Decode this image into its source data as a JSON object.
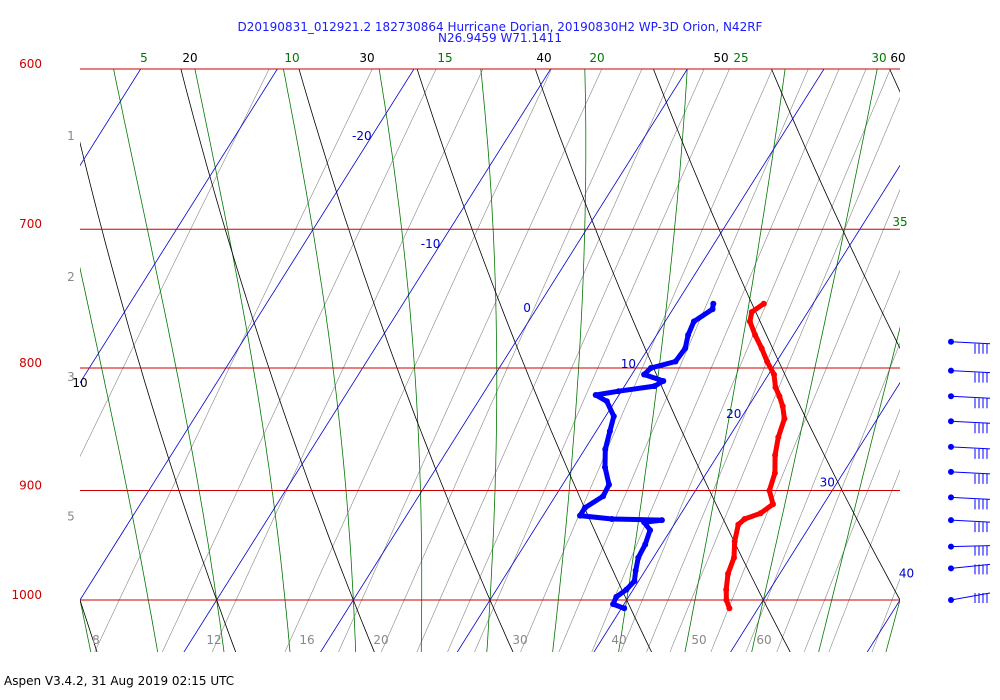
{
  "header": {
    "title": "D20190831_012921.2 182730864 Hurricane Dorian, 20190830H2 WP-3D Orion, N42RF",
    "subtitle": "N26.9459 W71.1411"
  },
  "footer": {
    "text": "Aspen V3.4.2, 31 Aug 2019  02:15 UTC"
  },
  "colors": {
    "isobar": "#cc0000",
    "isotherm": "#0000cc",
    "dry_adiabat": "#000000",
    "moist_adiabat": "#007700",
    "mixing_ratio": "#888888",
    "temperature_trace": "#ff0000",
    "dewpoint_trace": "#0000ff"
  },
  "chart_data": {
    "type": "skew-t",
    "pressure_levels": [
      {
        "p": 600,
        "label": "600"
      },
      {
        "p": 700,
        "label": "700"
      },
      {
        "p": 800,
        "label": "800"
      },
      {
        "p": 900,
        "label": "900"
      },
      {
        "p": 1000,
        "label": "1000"
      }
    ],
    "pressure_range": [
      600,
      1040
    ],
    "temperature_range_at_1000hPa": [
      -20,
      40
    ],
    "height_labels": [
      {
        "p": 640,
        "label": "1"
      },
      {
        "p": 733,
        "label": "2"
      },
      {
        "p": 807,
        "label": "3"
      },
      {
        "p": 923,
        "label": "5"
      }
    ],
    "isotherm_labels": [
      {
        "t": -20,
        "label": "-20"
      },
      {
        "t": -10,
        "label": "-10"
      },
      {
        "t": 0,
        "label": "0"
      },
      {
        "t": 10,
        "label": "10"
      },
      {
        "t": 20,
        "label": "20"
      },
      {
        "t": 30,
        "label": "30"
      },
      {
        "t": 40,
        "label": "40"
      }
    ],
    "dry_adiabat_labels": [
      "10",
      "20",
      "30",
      "40",
      "50",
      "60"
    ],
    "moist_adiabat_labels": [
      "5",
      "10",
      "15",
      "20",
      "25",
      "30",
      "35"
    ],
    "mixing_ratio_labels": [
      "8",
      "12",
      "16",
      "20",
      "30",
      "40",
      "50",
      "60"
    ],
    "temperature": [
      {
        "p": 1008,
        "t": 27.9
      },
      {
        "p": 1000,
        "t": 27.3
      },
      {
        "p": 990,
        "t": 26.8
      },
      {
        "p": 975,
        "t": 26.2
      },
      {
        "p": 960,
        "t": 25.9
      },
      {
        "p": 945,
        "t": 25.2
      },
      {
        "p": 930,
        "t": 24.7
      },
      {
        "p": 925,
        "t": 24.9
      },
      {
        "p": 920,
        "t": 25.8
      },
      {
        "p": 912,
        "t": 26.3
      },
      {
        "p": 900,
        "t": 25.4
      },
      {
        "p": 885,
        "t": 25.0
      },
      {
        "p": 870,
        "t": 24.2
      },
      {
        "p": 855,
        "t": 23.6
      },
      {
        "p": 840,
        "t": 23.2
      },
      {
        "p": 830,
        "t": 22.5
      },
      {
        "p": 822,
        "t": 21.8
      },
      {
        "p": 815,
        "t": 21.1
      },
      {
        "p": 805,
        "t": 20.4
      },
      {
        "p": 795,
        "t": 19.3
      },
      {
        "p": 785,
        "t": 18.3
      },
      {
        "p": 775,
        "t": 17.2
      },
      {
        "p": 765,
        "t": 16.2
      },
      {
        "p": 758,
        "t": 15.9
      },
      {
        "p": 752,
        "t": 16.4
      }
    ],
    "dewpoint": [
      {
        "p": 1008,
        "t": 20.2
      },
      {
        "p": 1004,
        "t": 19.2
      },
      {
        "p": 997,
        "t": 19.1
      },
      {
        "p": 990,
        "t": 19.5
      },
      {
        "p": 982,
        "t": 19.7
      },
      {
        "p": 972,
        "t": 19.3
      },
      {
        "p": 960,
        "t": 18.9
      },
      {
        "p": 948,
        "t": 18.8
      },
      {
        "p": 935,
        "t": 18.5
      },
      {
        "p": 928,
        "t": 17.7
      },
      {
        "p": 926,
        "t": 18.9
      },
      {
        "p": 925,
        "t": 15.2
      },
      {
        "p": 922,
        "t": 12.7
      },
      {
        "p": 915,
        "t": 12.7
      },
      {
        "p": 905,
        "t": 13.5
      },
      {
        "p": 895,
        "t": 13.4
      },
      {
        "p": 880,
        "t": 12.3
      },
      {
        "p": 865,
        "t": 11.5
      },
      {
        "p": 850,
        "t": 11.0
      },
      {
        "p": 838,
        "t": 10.6
      },
      {
        "p": 826,
        "t": 9.4
      },
      {
        "p": 821,
        "t": 8.3
      },
      {
        "p": 818,
        "t": 9.8
      },
      {
        "p": 814,
        "t": 12.2
      },
      {
        "p": 810,
        "t": 12.6
      },
      {
        "p": 805,
        "t": 10.9
      },
      {
        "p": 800,
        "t": 11.1
      },
      {
        "p": 795,
        "t": 12.6
      },
      {
        "p": 785,
        "t": 12.7
      },
      {
        "p": 775,
        "t": 12.3
      },
      {
        "p": 765,
        "t": 12.1
      },
      {
        "p": 756,
        "t": 12.9
      },
      {
        "p": 752,
        "t": 12.7
      }
    ],
    "wind_barbs": [
      {
        "p": 780
      },
      {
        "p": 802
      },
      {
        "p": 822
      },
      {
        "p": 842
      },
      {
        "p": 863
      },
      {
        "p": 884
      },
      {
        "p": 906
      },
      {
        "p": 926
      },
      {
        "p": 950
      },
      {
        "p": 970
      },
      {
        "p": 1000
      }
    ]
  }
}
